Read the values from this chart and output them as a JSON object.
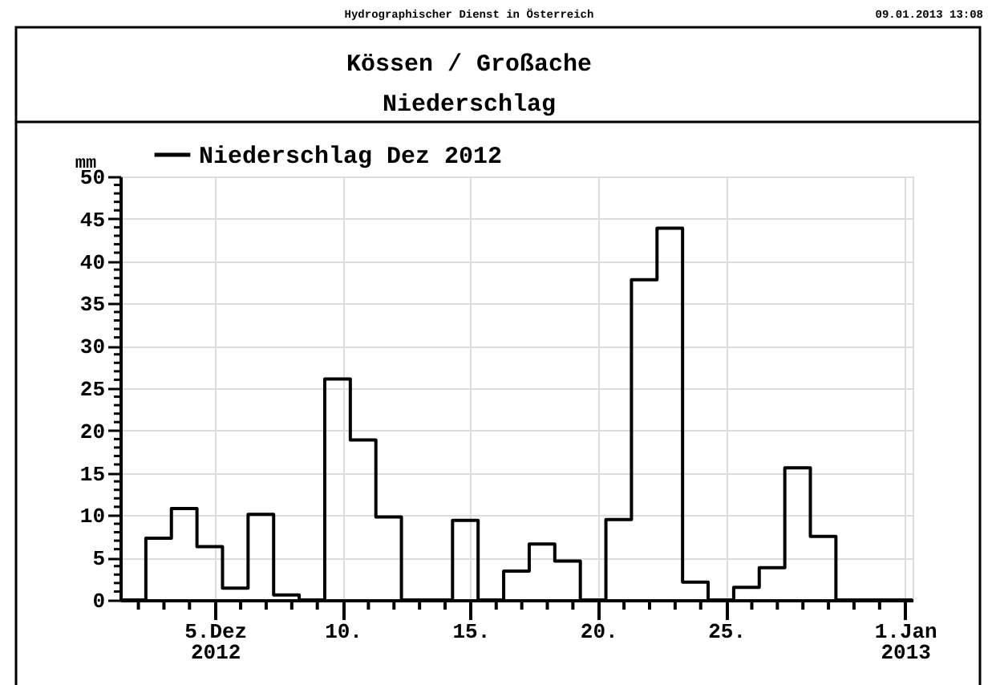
{
  "chart_data": {
    "type": "step",
    "title": "Kössen / Großache",
    "subtitle": "Niederschlag",
    "ylabel": "mm",
    "annotations": [
      "Hydrographischer Dienst in Österreich",
      "09.01.2013 13:08"
    ],
    "x": [
      "2012-12-01T07:00",
      "2012-12-02T07:00",
      "2012-12-03T07:00",
      "2012-12-04T07:00",
      "2012-12-05T07:00",
      "2012-12-06T07:00",
      "2012-12-07T07:00",
      "2012-12-08T07:00",
      "2012-12-09T07:00",
      "2012-12-10T07:00",
      "2012-12-11T07:00",
      "2012-12-12T07:00",
      "2012-12-13T07:00",
      "2012-12-14T07:00",
      "2012-12-15T07:00",
      "2012-12-16T07:00",
      "2012-12-17T07:00",
      "2012-12-18T07:00",
      "2012-12-19T07:00",
      "2012-12-20T07:00",
      "2012-12-21T07:00",
      "2012-12-22T07:00",
      "2012-12-23T07:00",
      "2012-12-24T07:00",
      "2012-12-25T07:00",
      "2012-12-26T07:00",
      "2012-12-27T07:00",
      "2012-12-28T07:00",
      "2012-12-29T07:00",
      "2012-12-30T07:00",
      "2012-12-31T07:00",
      "2013-01-01T07:00"
    ],
    "series": [
      {
        "name": "Niederschlag Dez 2012",
        "color": "#000000",
        "values": [
          0,
          7.3,
          10.8,
          6.3,
          1.4,
          10.1,
          0.6,
          0,
          26.1,
          18.9,
          9.8,
          0,
          0,
          9.4,
          0,
          3.4,
          6.6,
          4.6,
          0,
          9.5,
          37.8,
          43.9,
          2.1,
          0,
          1.5,
          3.8,
          15.6,
          7.5,
          0,
          0,
          0,
          0
        ]
      }
    ],
    "xlim": [
      "2012-12-01T07:00",
      "2013-01-01T07:00"
    ],
    "xticks": [
      {
        "value": "2012-12-02",
        "label": null
      },
      {
        "value": "2012-12-03",
        "label": null
      },
      {
        "value": "2012-12-04",
        "label": null
      },
      {
        "value": "2012-12-05",
        "label": "5.Dez\n2012"
      },
      {
        "value": "2012-12-06",
        "label": null
      },
      {
        "value": "2012-12-07",
        "label": null
      },
      {
        "value": "2012-12-08",
        "label": null
      },
      {
        "value": "2012-12-09",
        "label": null
      },
      {
        "value": "2012-12-10",
        "label": "10."
      },
      {
        "value": "2012-12-11",
        "label": null
      },
      {
        "value": "2012-12-12",
        "label": null
      },
      {
        "value": "2012-12-13",
        "label": null
      },
      {
        "value": "2012-12-14",
        "label": null
      },
      {
        "value": "2012-12-15",
        "label": "15."
      },
      {
        "value": "2012-12-16",
        "label": null
      },
      {
        "value": "2012-12-17",
        "label": null
      },
      {
        "value": "2012-12-18",
        "label": null
      },
      {
        "value": "2012-12-19",
        "label": null
      },
      {
        "value": "2012-12-20",
        "label": "20."
      },
      {
        "value": "2012-12-21",
        "label": null
      },
      {
        "value": "2012-12-22",
        "label": null
      },
      {
        "value": "2012-12-23",
        "label": null
      },
      {
        "value": "2012-12-24",
        "label": null
      },
      {
        "value": "2012-12-25",
        "label": "25."
      },
      {
        "value": "2012-12-26",
        "label": null
      },
      {
        "value": "2012-12-27",
        "label": null
      },
      {
        "value": "2012-12-28",
        "label": null
      },
      {
        "value": "2012-12-29",
        "label": null
      },
      {
        "value": "2012-12-30",
        "label": null
      },
      {
        "value": "2012-12-31",
        "label": null
      },
      {
        "value": "2013-01-01",
        "label": "1.Jan\n2013"
      }
    ],
    "ylim": [
      0,
      50
    ],
    "yticks": [
      0,
      {
        "value": 1,
        "label": null
      },
      {
        "value": 2,
        "label": null
      },
      {
        "value": 3,
        "label": null
      },
      {
        "value": 4,
        "label": null
      },
      5,
      {
        "value": 6,
        "label": null
      },
      {
        "value": 7,
        "label": null
      },
      {
        "value": 8,
        "label": null
      },
      {
        "value": 9,
        "label": null
      },
      10,
      {
        "value": 11,
        "label": null
      },
      {
        "value": 12,
        "label": null
      },
      {
        "value": 13,
        "label": null
      },
      {
        "value": 14,
        "label": null
      },
      15,
      {
        "value": 16,
        "label": null
      },
      {
        "value": 17,
        "label": null
      },
      {
        "value": 18,
        "label": null
      },
      {
        "value": 19,
        "label": null
      },
      20,
      {
        "value": 21,
        "label": null
      },
      {
        "value": 22,
        "label": null
      },
      {
        "value": 23,
        "label": null
      },
      {
        "value": 24,
        "label": null
      },
      25,
      {
        "value": 26,
        "label": null
      },
      {
        "value": 27,
        "label": null
      },
      {
        "value": 28,
        "label": null
      },
      {
        "value": 29,
        "label": null
      },
      30,
      {
        "value": 31,
        "label": null
      },
      {
        "value": 32,
        "label": null
      },
      {
        "value": 33,
        "label": null
      },
      {
        "value": 34,
        "label": null
      },
      35,
      {
        "value": 36,
        "label": null
      },
      {
        "value": 37,
        "label": null
      },
      {
        "value": 38,
        "label": null
      },
      {
        "value": 39,
        "label": null
      },
      40,
      {
        "value": 41,
        "label": null
      },
      {
        "value": 42,
        "label": null
      },
      {
        "value": 43,
        "label": null
      },
      {
        "value": 44,
        "label": null
      },
      45,
      {
        "value": 46,
        "label": null
      },
      {
        "value": 47,
        "label": null
      },
      {
        "value": 48,
        "label": null
      },
      {
        "value": 49,
        "label": null
      },
      50
    ],
    "grid": true,
    "legend": "top left",
    "line_style": "solid",
    "marker": "none"
  }
}
